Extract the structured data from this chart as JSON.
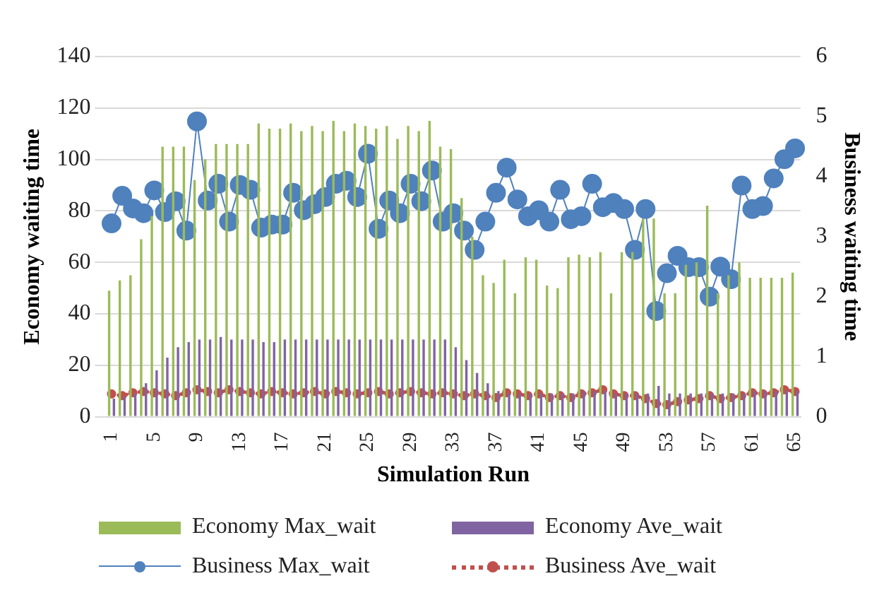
{
  "chart_data": {
    "type": "bar",
    "xlabel": "Simulation Run",
    "ylabel": "Economy waiting time",
    "y2label": "Business waiting time",
    "categories": [
      "1",
      null,
      null,
      null,
      "5",
      null,
      null,
      null,
      "9",
      null,
      null,
      null,
      "13",
      null,
      null,
      null,
      "17",
      null,
      null,
      null,
      "21",
      null,
      null,
      null,
      "25",
      null,
      null,
      null,
      "29",
      null,
      null,
      null,
      "33",
      null,
      null,
      null,
      "37",
      null,
      null,
      null,
      "41",
      null,
      null,
      null,
      "45",
      null,
      null,
      null,
      "49",
      null,
      null,
      null,
      "53",
      null,
      null,
      null,
      "57",
      null,
      null,
      null,
      "61",
      null,
      null,
      null,
      "65"
    ],
    "ylim": [
      0,
      140
    ],
    "yticks": [
      0,
      20,
      40,
      60,
      80,
      100,
      120,
      140
    ],
    "y2lim": [
      0,
      6
    ],
    "y2ticks": [
      0,
      1,
      2,
      3,
      4,
      5,
      6
    ],
    "grid": "y",
    "legend": "bottom",
    "series": [
      {
        "name": "Economy Max_wait",
        "color": "#9bbb59",
        "values": [
          49,
          53,
          55,
          69,
          78,
          105,
          105,
          105,
          92,
          100,
          106,
          106,
          106,
          106,
          114,
          112,
          112,
          114,
          111,
          113,
          111,
          115,
          111,
          114,
          113,
          112,
          113,
          108,
          113,
          111,
          115,
          105,
          104,
          85,
          70,
          55,
          52,
          61,
          48,
          62,
          61,
          51,
          50,
          62,
          63,
          62,
          64,
          48,
          64,
          64,
          77,
          77,
          48,
          48,
          59,
          60,
          82,
          48,
          55,
          60,
          54,
          54,
          54,
          54,
          56
        ]
      },
      {
        "name": "Economy Ave_wait",
        "color": "#8064a2",
        "values": [
          7,
          8,
          9,
          13,
          18,
          23,
          27,
          29,
          30,
          30,
          31,
          30,
          30,
          30,
          29,
          29,
          30,
          30,
          30,
          30,
          30,
          30,
          30,
          30,
          30,
          30,
          30,
          30,
          30,
          30,
          30,
          30,
          27,
          22,
          17,
          13,
          10,
          9,
          9,
          9,
          9,
          9,
          9,
          9,
          10,
          10,
          10,
          9,
          9,
          9,
          9,
          12,
          9,
          9,
          9,
          9,
          9,
          9,
          9,
          9,
          10,
          10,
          10,
          10,
          10
        ]
      },
      {
        "name": "Business Max_wait",
        "type": "line",
        "axis": "y2",
        "color": "#4f81bd",
        "marker": "circle",
        "line_style": "solid",
        "values": [
          3.22,
          3.68,
          3.47,
          3.39,
          3.77,
          3.41,
          3.59,
          3.1,
          4.92,
          3.6,
          3.88,
          3.25,
          3.86,
          3.78,
          3.15,
          3.2,
          3.2,
          3.73,
          3.44,
          3.54,
          3.66,
          3.88,
          3.93,
          3.66,
          4.38,
          3.13,
          3.6,
          3.39,
          3.88,
          3.59,
          4.1,
          3.25,
          3.39,
          3.1,
          2.78,
          3.25,
          3.73,
          4.15,
          3.62,
          3.34,
          3.44,
          3.25,
          3.78,
          3.29,
          3.34,
          3.88,
          3.49,
          3.56,
          3.46,
          2.78,
          3.46,
          1.76,
          2.39,
          2.68,
          2.49,
          2.49,
          2.0,
          2.5,
          2.29,
          3.85,
          3.46,
          3.51,
          3.97,
          4.29,
          4.47
        ]
      },
      {
        "name": "Business Ave_wait",
        "type": "line",
        "axis": "y2",
        "color": "#c0504d",
        "marker": "circle",
        "line_style": "dotted",
        "values": [
          0.38,
          0.35,
          0.4,
          0.42,
          0.4,
          0.38,
          0.35,
          0.4,
          0.45,
          0.42,
          0.4,
          0.45,
          0.42,
          0.4,
          0.38,
          0.42,
          0.4,
          0.38,
          0.4,
          0.42,
          0.38,
          0.42,
          0.4,
          0.38,
          0.4,
          0.42,
          0.38,
          0.4,
          0.42,
          0.4,
          0.38,
          0.4,
          0.38,
          0.35,
          0.38,
          0.35,
          0.32,
          0.4,
          0.38,
          0.35,
          0.38,
          0.32,
          0.35,
          0.32,
          0.38,
          0.4,
          0.45,
          0.38,
          0.35,
          0.35,
          0.3,
          0.22,
          0.2,
          0.25,
          0.28,
          0.3,
          0.35,
          0.3,
          0.32,
          0.35,
          0.4,
          0.38,
          0.4,
          0.45,
          0.42
        ]
      }
    ]
  }
}
